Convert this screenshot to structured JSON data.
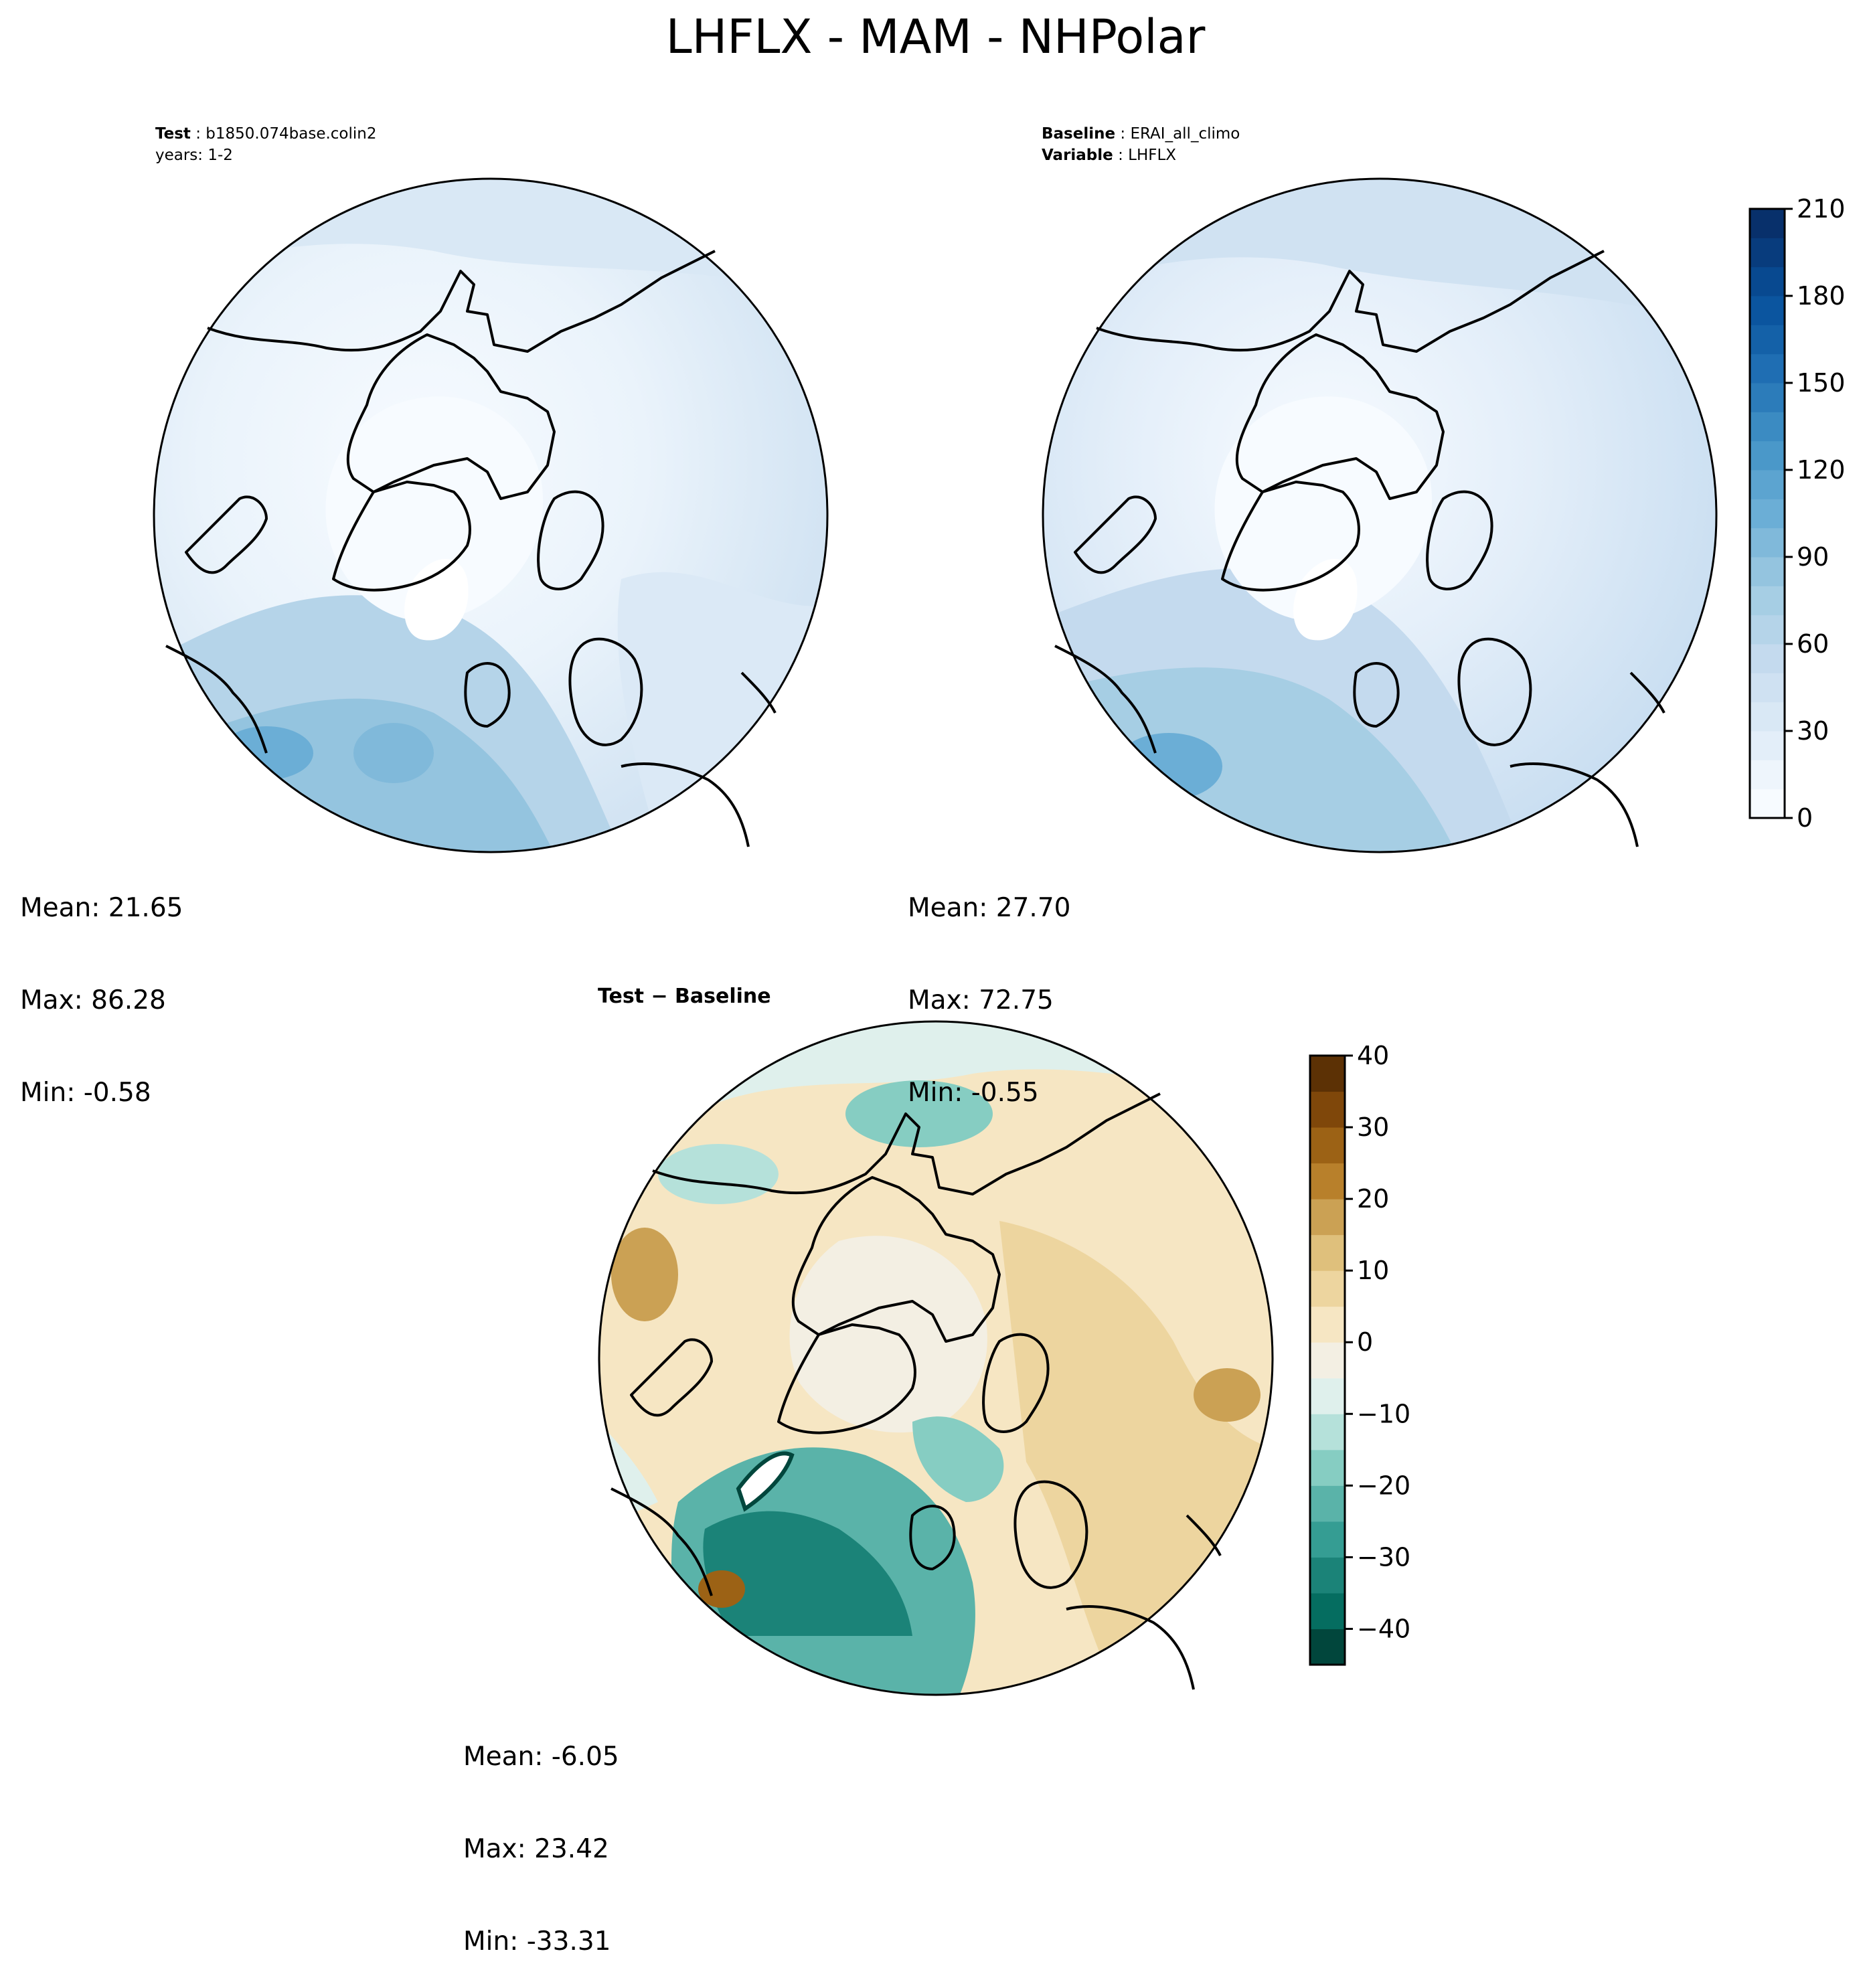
{
  "title": "LHFLX - MAM - NHPolar",
  "panels": [
    {
      "id": "test",
      "header_lines": [
        {
          "key": "Test",
          "value": "b1850.074base.colin2"
        },
        {
          "key": "",
          "value": "years: 1-2"
        }
      ],
      "stats": {
        "mean": "Mean: 21.65",
        "max": "Max: 86.28",
        "min": "Min: -0.58"
      }
    },
    {
      "id": "baseline",
      "header_lines": [
        {
          "key": "Baseline",
          "value": "ERAI_all_climo"
        },
        {
          "key": "Variable",
          "value": "LHFLX"
        }
      ],
      "stats": {
        "mean": "Mean: 27.70",
        "max": "Max: 72.75",
        "min": "Min: -0.55"
      }
    },
    {
      "id": "diff",
      "title": "Test − Baseline",
      "stats": {
        "mean": "Mean: -6.05",
        "max": "Max: 23.42",
        "min": "Min: -33.31"
      }
    }
  ],
  "chart_data": [
    {
      "type": "heatmap",
      "projection": "north polar stereographic",
      "field": "LHFLX",
      "season": "MAM",
      "colormap": "Blues",
      "colorbar": {
        "ticks": [
          0,
          30,
          60,
          90,
          120,
          150,
          180,
          210
        ],
        "range": [
          0,
          210
        ],
        "levels": 21,
        "colors": [
          "#f7fbff",
          "#eef5fc",
          "#e3eef9",
          "#d9e8f5",
          "#cfe1f2",
          "#c4daee",
          "#b5d4e9",
          "#a6cee4",
          "#94c4df",
          "#80b9da",
          "#6baed6",
          "#5ca4d0",
          "#4a98c9",
          "#3b8bc2",
          "#2c7cba",
          "#1f6eb3",
          "#1461a8",
          "#0b559f",
          "#084990",
          "#083c7d",
          "#08306b"
        ]
      },
      "summary": {
        "mean": 21.65,
        "max": 86.28,
        "min": -0.58
      }
    },
    {
      "type": "heatmap",
      "projection": "north polar stereographic",
      "field": "LHFLX",
      "season": "MAM",
      "colormap": "Blues",
      "summary": {
        "mean": 27.7,
        "max": 72.75,
        "min": -0.55
      }
    },
    {
      "type": "heatmap",
      "projection": "north polar stereographic",
      "field": "LHFLX difference",
      "colormap": "BrBG",
      "colorbar": {
        "ticks": [
          40,
          30,
          20,
          10,
          0,
          -10,
          -20,
          -30,
          -40
        ],
        "range": [
          -45,
          40
        ],
        "levels": 17,
        "colors": [
          "#01463c",
          "#056d60",
          "#1b8378",
          "#359d93",
          "#5ab3a9",
          "#86cdc2",
          "#b5e1da",
          "#dff0ec",
          "#f3efe3",
          "#f6e6c3",
          "#edd59f",
          "#dfc07c",
          "#cba154",
          "#b8802b",
          "#9c6215",
          "#7f470a",
          "#5c3105"
        ]
      },
      "summary": {
        "mean": -6.05,
        "max": 23.42,
        "min": -33.31
      }
    }
  ]
}
